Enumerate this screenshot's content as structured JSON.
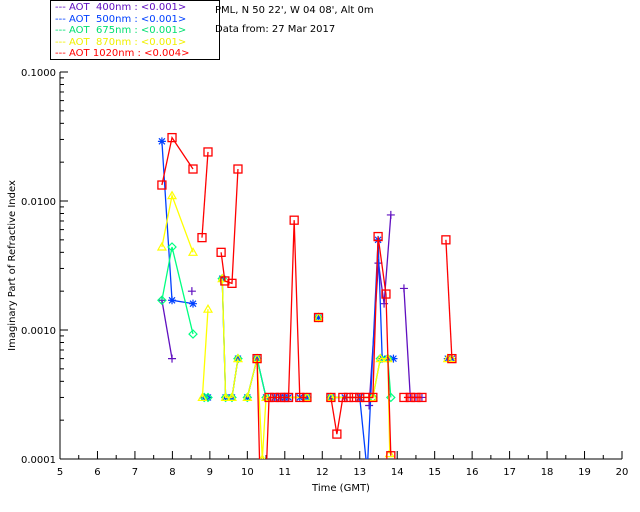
{
  "header": {
    "location": "PML, N 50 22', W 04 08', Alt 0m",
    "date": "Data from: 27 Mar 2017"
  },
  "chart_data": {
    "type": "line",
    "title": "",
    "xlabel": "Time (GMT)",
    "ylabel": "Imaginary Part of Refractive Index",
    "xlim": [
      5,
      20
    ],
    "ylim": [
      0.0001,
      0.1
    ],
    "yscale": "log",
    "xticks": [
      "5",
      "6",
      "7",
      "8",
      "9",
      "10",
      "11",
      "12",
      "13",
      "14",
      "15",
      "16",
      "17",
      "18",
      "19",
      "20"
    ],
    "yticks": [
      "0.0001",
      "0.0010",
      "0.0100",
      "0.1000"
    ],
    "legend_position": "top-left outside",
    "series": [
      {
        "name": "AOT  400nm : <0.001>",
        "color": "#6010c0",
        "marker": "plus",
        "points": [
          [
            7.72,
            0.0017
          ],
          [
            7.99,
            0.0006
          ],
          null,
          [
            8.52,
            0.002
          ],
          null,
          [
            13.25,
            0.00026
          ],
          [
            13.5,
            0.0033
          ],
          [
            13.65,
            0.0016
          ],
          [
            13.83,
            0.0078
          ],
          null,
          [
            14.18,
            0.0021
          ],
          [
            14.35,
            0.0003
          ],
          [
            14.5,
            0.0003
          ],
          [
            14.66,
            0.0003
          ]
        ]
      },
      {
        "name": "AOT  500nm : <0.001>",
        "color": "#0040ff",
        "marker": "star",
        "points": [
          [
            7.72,
            0.029
          ],
          [
            7.99,
            0.0017
          ],
          [
            8.55,
            0.0016
          ],
          null,
          [
            8.85,
            0.0003
          ],
          [
            8.95,
            0.0003
          ],
          null,
          [
            9.33,
            0.0025
          ],
          [
            9.42,
            0.0003
          ],
          [
            9.59,
            0.0003
          ],
          [
            9.75,
            0.0006
          ],
          null,
          [
            10.0,
            0.0003
          ],
          [
            10.26,
            0.0006
          ],
          [
            10.5,
            0.0003
          ],
          [
            10.73,
            0.0003
          ],
          [
            10.88,
            0.0003
          ],
          [
            11.0,
            0.0003
          ],
          [
            11.1,
            0.0003
          ],
          [
            11.4,
            0.0003
          ],
          [
            11.59,
            0.0003
          ],
          null,
          [
            11.9,
            0.00125
          ],
          null,
          [
            12.23,
            0.0003
          ],
          [
            12.6,
            0.0003
          ],
          [
            13.0,
            0.0003
          ],
          [
            13.2,
            8e-05
          ],
          [
            13.49,
            0.005
          ],
          [
            13.6,
            0.0006
          ],
          [
            13.75,
            0.0006
          ],
          [
            13.9,
            0.0006
          ],
          null,
          [
            15.35,
            0.0006
          ],
          [
            15.46,
            0.0006
          ]
        ]
      },
      {
        "name": "AOT  675nm : <0.001>",
        "color": "#00ff80",
        "marker": "diamond",
        "points": [
          [
            7.72,
            0.0017
          ],
          [
            7.99,
            0.0044
          ],
          [
            8.55,
            0.00093
          ],
          null,
          [
            8.85,
            0.0003
          ],
          [
            8.95,
            0.0003
          ],
          null,
          [
            9.33,
            0.0025
          ],
          [
            9.42,
            0.0003
          ],
          [
            9.59,
            0.0003
          ],
          [
            9.75,
            0.0006
          ],
          null,
          [
            10.0,
            0.0003
          ],
          [
            10.26,
            0.0006
          ],
          [
            10.5,
            0.0003
          ],
          [
            11.59,
            0.0003
          ],
          null,
          [
            11.9,
            0.00125
          ],
          null,
          [
            12.23,
            0.0003
          ],
          [
            13.35,
            0.0003
          ],
          [
            13.55,
            0.0006
          ],
          [
            13.75,
            0.0006
          ],
          [
            13.83,
            0.0003
          ]
        ]
      },
      {
        "name": "AOT  870nm : <0.001>",
        "color": "#ffff00",
        "marker": "triangle",
        "points": [
          [
            7.72,
            0.0044
          ],
          [
            7.99,
            0.011
          ],
          [
            8.55,
            0.004
          ],
          null,
          [
            8.8,
            0.0003
          ],
          [
            8.95,
            0.00145
          ],
          null,
          [
            9.33,
            0.0025
          ],
          [
            9.42,
            0.0003
          ],
          [
            9.59,
            0.0003
          ],
          [
            9.75,
            0.0006
          ],
          null,
          [
            10.0,
            0.0003
          ],
          [
            10.26,
            0.0006
          ],
          [
            10.4,
            0.0001
          ],
          [
            10.5,
            0.0003
          ],
          [
            11.59,
            0.0003
          ],
          null,
          [
            11.9,
            0.00125
          ],
          null,
          [
            12.23,
            0.0003
          ],
          [
            13.35,
            0.0003
          ],
          [
            13.55,
            0.0006
          ],
          [
            13.75,
            0.0006
          ],
          [
            13.8,
            0.00011
          ],
          null,
          [
            15.35,
            0.0006
          ],
          [
            15.46,
            0.0006
          ]
        ]
      },
      {
        "name": "AOT 1020nm : <0.004>",
        "color": "#ff0000",
        "marker": "square",
        "points": [
          [
            7.72,
            0.0133
          ],
          [
            7.99,
            0.031
          ],
          [
            8.55,
            0.0177
          ],
          null,
          [
            8.79,
            0.0052
          ],
          [
            8.95,
            0.024
          ],
          null,
          [
            9.3,
            0.004
          ],
          [
            9.4,
            0.0024
          ],
          [
            9.59,
            0.0023
          ],
          [
            9.75,
            0.0177
          ],
          null,
          [
            10.26,
            0.0006
          ],
          [
            10.35,
            5e-05
          ],
          [
            10.48,
            5e-05
          ],
          [
            10.58,
            0.0003
          ],
          [
            10.73,
            0.0003
          ],
          [
            10.88,
            0.0003
          ],
          [
            11.0,
            0.0003
          ],
          [
            11.1,
            0.0003
          ],
          [
            11.25,
            0.0071
          ],
          [
            11.4,
            0.0003
          ],
          [
            11.59,
            0.0003
          ],
          null,
          [
            11.9,
            0.00125
          ],
          null,
          [
            12.23,
            0.0003
          ],
          [
            12.39,
            0.000156
          ],
          [
            12.55,
            0.0003
          ],
          [
            12.7,
            0.0003
          ],
          [
            12.85,
            0.0003
          ],
          [
            13.0,
            0.0003
          ],
          [
            13.15,
            0.0003
          ],
          [
            13.35,
            0.0003
          ],
          [
            13.49,
            0.0053
          ],
          [
            13.7,
            0.0019
          ],
          [
            13.83,
            0.000106
          ],
          null,
          [
            14.18,
            0.0003
          ],
          [
            14.35,
            0.0003
          ],
          [
            14.5,
            0.0003
          ],
          [
            14.66,
            0.0003
          ],
          null,
          [
            15.3,
            0.005
          ],
          [
            15.46,
            0.0006
          ]
        ]
      }
    ]
  }
}
